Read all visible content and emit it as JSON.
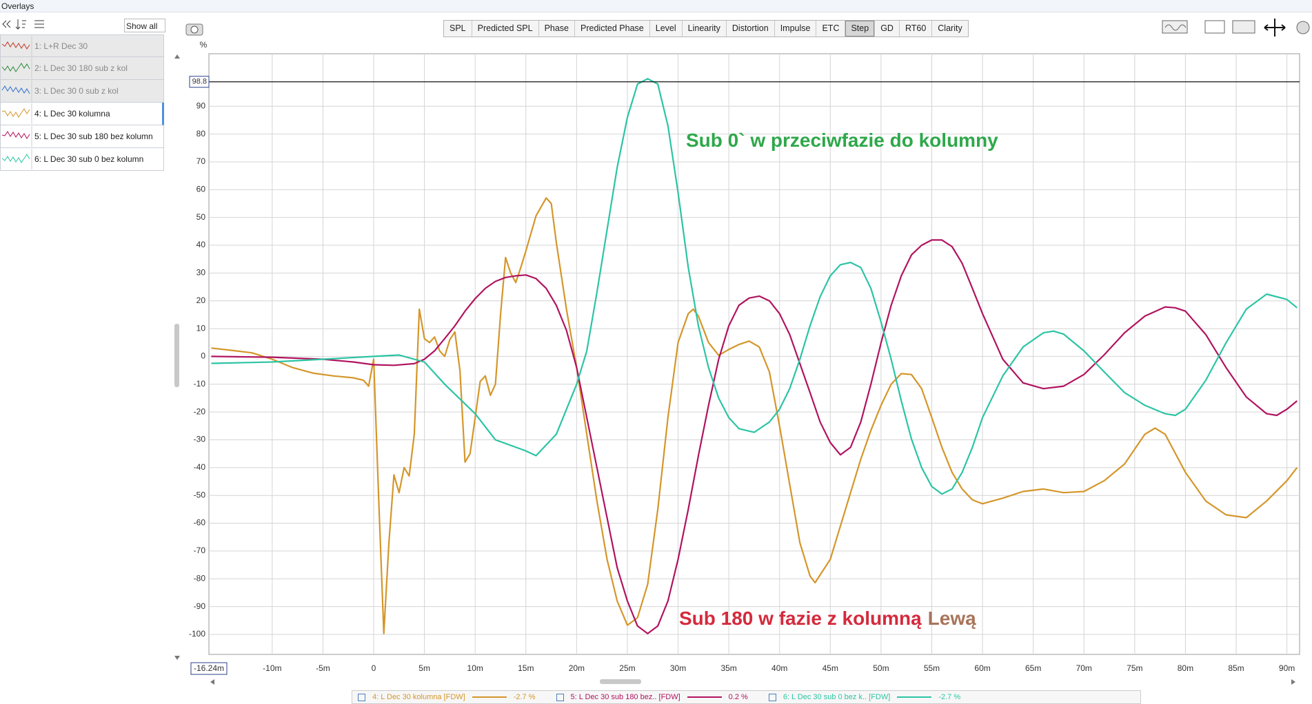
{
  "window": {
    "title": "Overlays"
  },
  "sidebar": {
    "show_all": "Show all",
    "hidden_overlays": [
      {
        "name": "1: L+R Dec 30",
        "color": "#c0392b"
      },
      {
        "name": "2: L Dec 30 180 sub z kol",
        "color": "#2e8b3a"
      },
      {
        "name": "3: L Dec 30 0 sub z kol",
        "color": "#2f6fc9"
      }
    ]
  },
  "toolbar": {
    "tabs": [
      "SPL",
      "Predicted SPL",
      "Phase",
      "Predicted Phase",
      "Level",
      "Linearity",
      "Distortion",
      "Impulse",
      "ETC",
      "Step",
      "GD",
      "RT60",
      "Clarity"
    ],
    "selected_index": 9
  },
  "chart_data": {
    "type": "line",
    "y_label": "%",
    "xlim": [
      -16.24,
      91.25
    ],
    "ylim": [
      -107.2,
      108.9
    ],
    "xticks": [
      {
        "value": -10,
        "label": "-10m"
      },
      {
        "value": -5,
        "label": "-5m"
      },
      0,
      {
        "value": 5,
        "label": "5m"
      },
      {
        "value": 10,
        "label": "10m"
      },
      {
        "value": 15,
        "label": "15m"
      },
      {
        "value": 20,
        "label": "20m"
      },
      {
        "value": 25,
        "label": "25m"
      },
      {
        "value": 30,
        "label": "30m"
      },
      {
        "value": 35,
        "label": "35m"
      },
      {
        "value": 40,
        "label": "40m"
      },
      {
        "value": 45,
        "label": "45m"
      },
      {
        "value": 50,
        "label": "50m"
      },
      {
        "value": 55,
        "label": "55m"
      },
      {
        "value": 60,
        "label": "60m"
      },
      {
        "value": 65,
        "label": "65m"
      },
      {
        "value": 70,
        "label": "70m"
      },
      {
        "value": 75,
        "label": "75m"
      },
      {
        "value": 80,
        "label": "80m"
      },
      {
        "value": 85,
        "label": "85m"
      },
      {
        "value": 90,
        "label": "90m"
      }
    ],
    "yticks": [
      -100,
      -90,
      -80,
      -70,
      -60,
      -50,
      -40,
      -30,
      -20,
      -10,
      0,
      10,
      20,
      30,
      40,
      50,
      60,
      70,
      80,
      90
    ],
    "grid": true,
    "cursor_y": 98.8,
    "cursor_x": {
      "value": -16.24,
      "label": "-16.24m"
    },
    "annotations": [
      {
        "parts": [
          {
            "text": "Sub 0` w przeciwfazie do kolumny",
            "color": "#2ea84a"
          }
        ]
      },
      {
        "parts": [
          {
            "text": "Sub 180 w fazie z kolumną",
            "color": "#d42a3c"
          },
          {
            "text": "Lewą",
            "color": "#a8745a"
          }
        ]
      }
    ],
    "series": [
      {
        "name": "4: L Dec 30 kolumna",
        "color": "#d4962a",
        "x": [
          -16,
          -14,
          -12,
          -10,
          -8,
          -6,
          -4,
          -2,
          -1,
          -0.5,
          0,
          0.5,
          1,
          1.5,
          2,
          2.5,
          3,
          3.5,
          4,
          4.5,
          5,
          5.5,
          6,
          6.5,
          7,
          7.5,
          8,
          8.5,
          9,
          9.5,
          10,
          10.5,
          11,
          11.5,
          12,
          12.5,
          13,
          13.5,
          14,
          14.5,
          15,
          16,
          17,
          17.5,
          18,
          19,
          20,
          21,
          22,
          23,
          24,
          25,
          26,
          27,
          28,
          29,
          30,
          31,
          31.5,
          32,
          33,
          34,
          35,
          36,
          37,
          38,
          39,
          40,
          41,
          42,
          43,
          43.5,
          45,
          46,
          47,
          48,
          49,
          50,
          51,
          52,
          53,
          54,
          55,
          56,
          57,
          58,
          59,
          60,
          62,
          64,
          66,
          68,
          70,
          72,
          74,
          76,
          77,
          78,
          80,
          82,
          84,
          86,
          88,
          90,
          91
        ],
        "values": [
          3,
          2.2,
          1.3,
          -1,
          -4,
          -6,
          -7,
          -7.7,
          -8.6,
          -10.7,
          -1,
          -52,
          -99.7,
          -67,
          -42.6,
          -49,
          -40,
          -43,
          -28,
          17,
          6.4,
          5,
          7,
          2,
          0,
          6,
          8.8,
          -5,
          -38,
          -35,
          -22,
          -9,
          -7,
          -14,
          -10,
          15,
          35.6,
          30,
          26.6,
          32,
          38,
          50.6,
          57,
          55,
          41,
          17,
          -4,
          -28,
          -52,
          -73,
          -88,
          -96.7,
          -94,
          -82,
          -55,
          -22,
          5,
          15.4,
          17,
          14.5,
          5,
          0.4,
          2.5,
          4.3,
          5.5,
          3.4,
          -5.6,
          -25,
          -46,
          -67,
          -79,
          -81.4,
          -73,
          -61,
          -49,
          -37,
          -26.6,
          -17.6,
          -10,
          -6.2,
          -6.5,
          -11.6,
          -22,
          -32.7,
          -41.7,
          -47.7,
          -51.6,
          -53,
          -51,
          -48.6,
          -47.7,
          -49,
          -48.6,
          -44.7,
          -38.7,
          -28,
          -25.8,
          -28,
          -41.7,
          -52,
          -57,
          -58,
          -52,
          -44.7,
          -40
        ]
      },
      {
        "name": "5: L Dec 30 sub 180 bez kolumn",
        "color": "#b0135f",
        "x": [
          -16,
          -10,
          -5,
          -2,
          0,
          2,
          4,
          5,
          6,
          7,
          8,
          9,
          10,
          11,
          12,
          13,
          14,
          15,
          16,
          17,
          18,
          19,
          20,
          21,
          22,
          23,
          24,
          25,
          26,
          27,
          28,
          29,
          30,
          31,
          32,
          33,
          34,
          35,
          36,
          37,
          38,
          39,
          40,
          41,
          42,
          43,
          44,
          45,
          46,
          47,
          48,
          49,
          50,
          51,
          52,
          53,
          54,
          55,
          56,
          57,
          58,
          59,
          60,
          62,
          64,
          66,
          68,
          70,
          72,
          74,
          76,
          78,
          79,
          80,
          82,
          84,
          86,
          88,
          89,
          90,
          91
        ],
        "values": [
          0,
          -0.3,
          -1,
          -2,
          -3,
          -3.2,
          -2.6,
          -1,
          2,
          6.4,
          11,
          16.3,
          20.8,
          24.5,
          27,
          28.4,
          29,
          29.3,
          28,
          24.5,
          18.4,
          9.4,
          -4,
          -22,
          -40,
          -58,
          -76,
          -88,
          -97,
          -99.7,
          -97,
          -88,
          -73,
          -55,
          -35.7,
          -17.6,
          -1,
          11,
          18.4,
          21,
          21.7,
          20,
          15.4,
          7.9,
          -2.6,
          -13,
          -23.6,
          -31,
          -35.4,
          -32.7,
          -23.6,
          -10,
          4.9,
          18.4,
          29,
          36.5,
          40,
          41.9,
          41.9,
          39.5,
          33.5,
          24.5,
          15.4,
          -1,
          -9.5,
          -11.6,
          -10.7,
          -6.5,
          0.6,
          8.5,
          14.5,
          17.8,
          17.5,
          16.3,
          7.9,
          -4,
          -14.6,
          -20.6,
          -21.2,
          -19,
          -16
        ]
      },
      {
        "name": "6: L Dec 30 sub 0 bez kolumn",
        "color": "#2bc4a4",
        "x": [
          -16,
          -10,
          -5,
          0,
          2.5,
          5,
          7,
          10,
          12,
          15,
          16,
          18,
          20,
          21,
          22,
          24,
          25,
          26,
          27,
          28,
          29,
          30,
          31,
          32,
          33,
          34,
          35,
          36,
          37.5,
          39,
          40,
          41,
          42,
          43,
          44,
          45,
          46,
          47,
          48,
          49,
          50,
          51,
          52,
          53,
          54,
          55,
          56,
          57,
          58,
          59,
          60,
          62,
          64,
          66,
          67,
          68,
          70,
          72,
          74,
          76,
          78,
          79,
          80,
          82,
          84,
          86,
          88,
          90,
          91
        ],
        "values": [
          -2.5,
          -2,
          -1,
          0,
          0.5,
          -2,
          -10,
          -20.6,
          -30,
          -34,
          -35.7,
          -28,
          -10,
          2,
          23,
          68,
          86,
          98,
          99.9,
          98,
          83,
          59,
          32,
          11,
          -4,
          -15,
          -22,
          -26,
          -27.3,
          -23.6,
          -19,
          -11.6,
          -1,
          11,
          21.5,
          29,
          33,
          33.8,
          32,
          24.5,
          12.4,
          -1,
          -16,
          -29.7,
          -40,
          -46.8,
          -49.5,
          -47.7,
          -41.7,
          -32.7,
          -22,
          -7,
          3.4,
          8.5,
          9.1,
          8,
          2,
          -5.6,
          -13,
          -17.6,
          -20.6,
          -21.2,
          -19,
          -8.6,
          4.9,
          17,
          22.4,
          20.5,
          17.5
        ]
      }
    ]
  },
  "legend_bar": [
    {
      "name": "4: L Dec 30 kolumna [FDW]",
      "reading": "-2.7 %"
    },
    {
      "name": "5: L Dec 30 sub 180 bez.. [FDW]",
      "reading": "0.2 %"
    },
    {
      "name": "6: L Dec 30 sub 0 bez k.. [FDW]",
      "reading": "-2.7 %"
    }
  ]
}
